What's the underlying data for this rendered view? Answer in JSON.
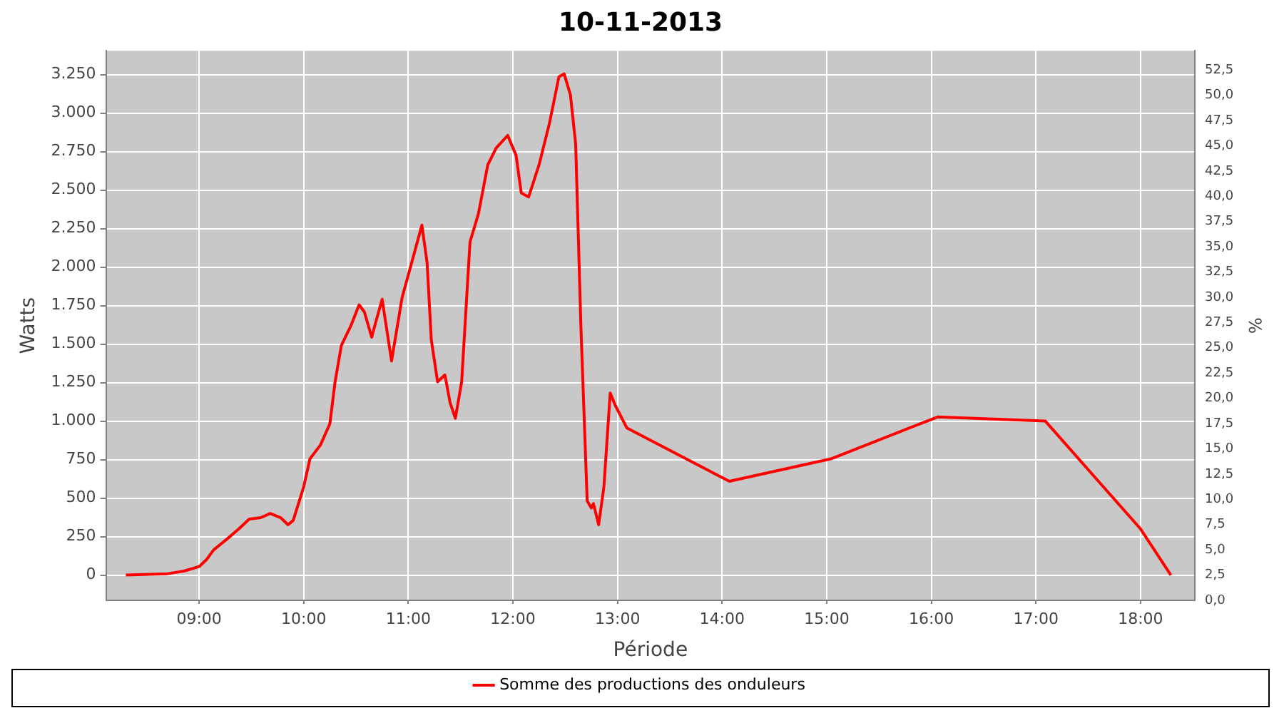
{
  "chart_data": {
    "type": "line",
    "title": "10-11-2013",
    "xlabel": "Période",
    "ylabel": "Watts",
    "y2label": "%",
    "x": [
      8.3,
      8.7,
      8.86,
      9.0,
      9.07,
      9.14,
      9.27,
      9.38,
      9.48,
      9.59,
      9.68,
      9.78,
      9.85,
      9.9,
      10.0,
      10.06,
      10.16,
      10.25,
      10.3,
      10.36,
      10.45,
      10.53,
      10.58,
      10.65,
      10.69,
      10.75,
      10.84,
      10.94,
      11.05,
      11.13,
      11.18,
      11.22,
      11.28,
      11.35,
      11.4,
      11.45,
      11.51,
      11.59,
      11.67,
      11.76,
      11.84,
      11.95,
      12.03,
      12.08,
      12.15,
      12.25,
      12.35,
      12.44,
      12.49,
      12.55,
      12.6,
      12.65,
      12.71,
      12.75,
      12.77,
      12.82,
      12.87,
      12.93,
      12.98,
      13.09,
      14.07,
      15.04,
      16.06,
      17.09,
      18.0,
      18.29
    ],
    "series": [
      {
        "name": "Somme des productions des onduleurs",
        "color": "#ff0000",
        "values": [
          0,
          9,
          27,
          55,
          100,
          164,
          236,
          300,
          364,
          373,
          400,
          373,
          327,
          355,
          573,
          755,
          845,
          982,
          1255,
          1491,
          1618,
          1755,
          1709,
          1545,
          1645,
          1791,
          1391,
          1800,
          2073,
          2273,
          2027,
          1527,
          1255,
          1300,
          1118,
          1018,
          1255,
          2164,
          2345,
          2664,
          2773,
          2855,
          2727,
          2482,
          2455,
          2664,
          2936,
          3236,
          3255,
          3118,
          2800,
          1618,
          482,
          436,
          464,
          327,
          573,
          1182,
          1100,
          955,
          609,
          755,
          1027,
          1000,
          300,
          0
        ]
      }
    ],
    "xlim": [
      8.11,
      18.52
    ],
    "xticks": [
      {
        "value": 9,
        "label": "09:00"
      },
      {
        "value": 10,
        "label": "10:00"
      },
      {
        "value": 11,
        "label": "11:00"
      },
      {
        "value": 12,
        "label": "12:00"
      },
      {
        "value": 13,
        "label": "13:00"
      },
      {
        "value": 14,
        "label": "14:00"
      },
      {
        "value": 15,
        "label": "15:00"
      },
      {
        "value": 16,
        "label": "16:00"
      },
      {
        "value": 17,
        "label": "17:00"
      },
      {
        "value": 18,
        "label": "18:00"
      }
    ],
    "ylim": [
      -164,
      3405
    ],
    "yticks": [
      0,
      250,
      500,
      750,
      {
        "value": 1000,
        "label": "1.000"
      },
      {
        "value": 1250,
        "label": "1.250"
      },
      {
        "value": 1500,
        "label": "1.500"
      },
      {
        "value": 1750,
        "label": "1.750"
      },
      {
        "value": 2000,
        "label": "2.000"
      },
      {
        "value": 2250,
        "label": "2.250"
      },
      {
        "value": 2500,
        "label": "2.500"
      },
      {
        "value": 2750,
        "label": "2.750"
      },
      {
        "value": 3000,
        "label": "3.000"
      },
      {
        "value": 3250,
        "label": "3.250"
      }
    ],
    "y2lim": [
      0,
      54.4
    ],
    "y2ticks": [
      {
        "value": 0,
        "label": "0,0"
      },
      {
        "value": 2.5,
        "label": "2,5"
      },
      {
        "value": 5,
        "label": "5,0"
      },
      {
        "value": 7.5,
        "label": "7,5"
      },
      {
        "value": 10,
        "label": "10,0"
      },
      {
        "value": 12.5,
        "label": "12,5"
      },
      {
        "value": 15,
        "label": "15,0"
      },
      {
        "value": 17.5,
        "label": "17,5"
      },
      {
        "value": 20,
        "label": "20,0"
      },
      {
        "value": 22.5,
        "label": "22,5"
      },
      {
        "value": 25,
        "label": "25,0"
      },
      {
        "value": 27.5,
        "label": "27,5"
      },
      {
        "value": 30,
        "label": "30,0"
      },
      {
        "value": 32.5,
        "label": "32,5"
      },
      {
        "value": 35,
        "label": "35,0"
      },
      {
        "value": 37.5,
        "label": "37,5"
      },
      {
        "value": 40,
        "label": "40,0"
      },
      {
        "value": 42.5,
        "label": "42,5"
      },
      {
        "value": 45,
        "label": "45,0"
      },
      {
        "value": 47.5,
        "label": "47,5"
      },
      {
        "value": 50,
        "label": "50,0"
      },
      {
        "value": 52.5,
        "label": "52,5"
      }
    ],
    "grid": true,
    "legend": "bottom",
    "marker": "none",
    "line_style": "solid"
  }
}
